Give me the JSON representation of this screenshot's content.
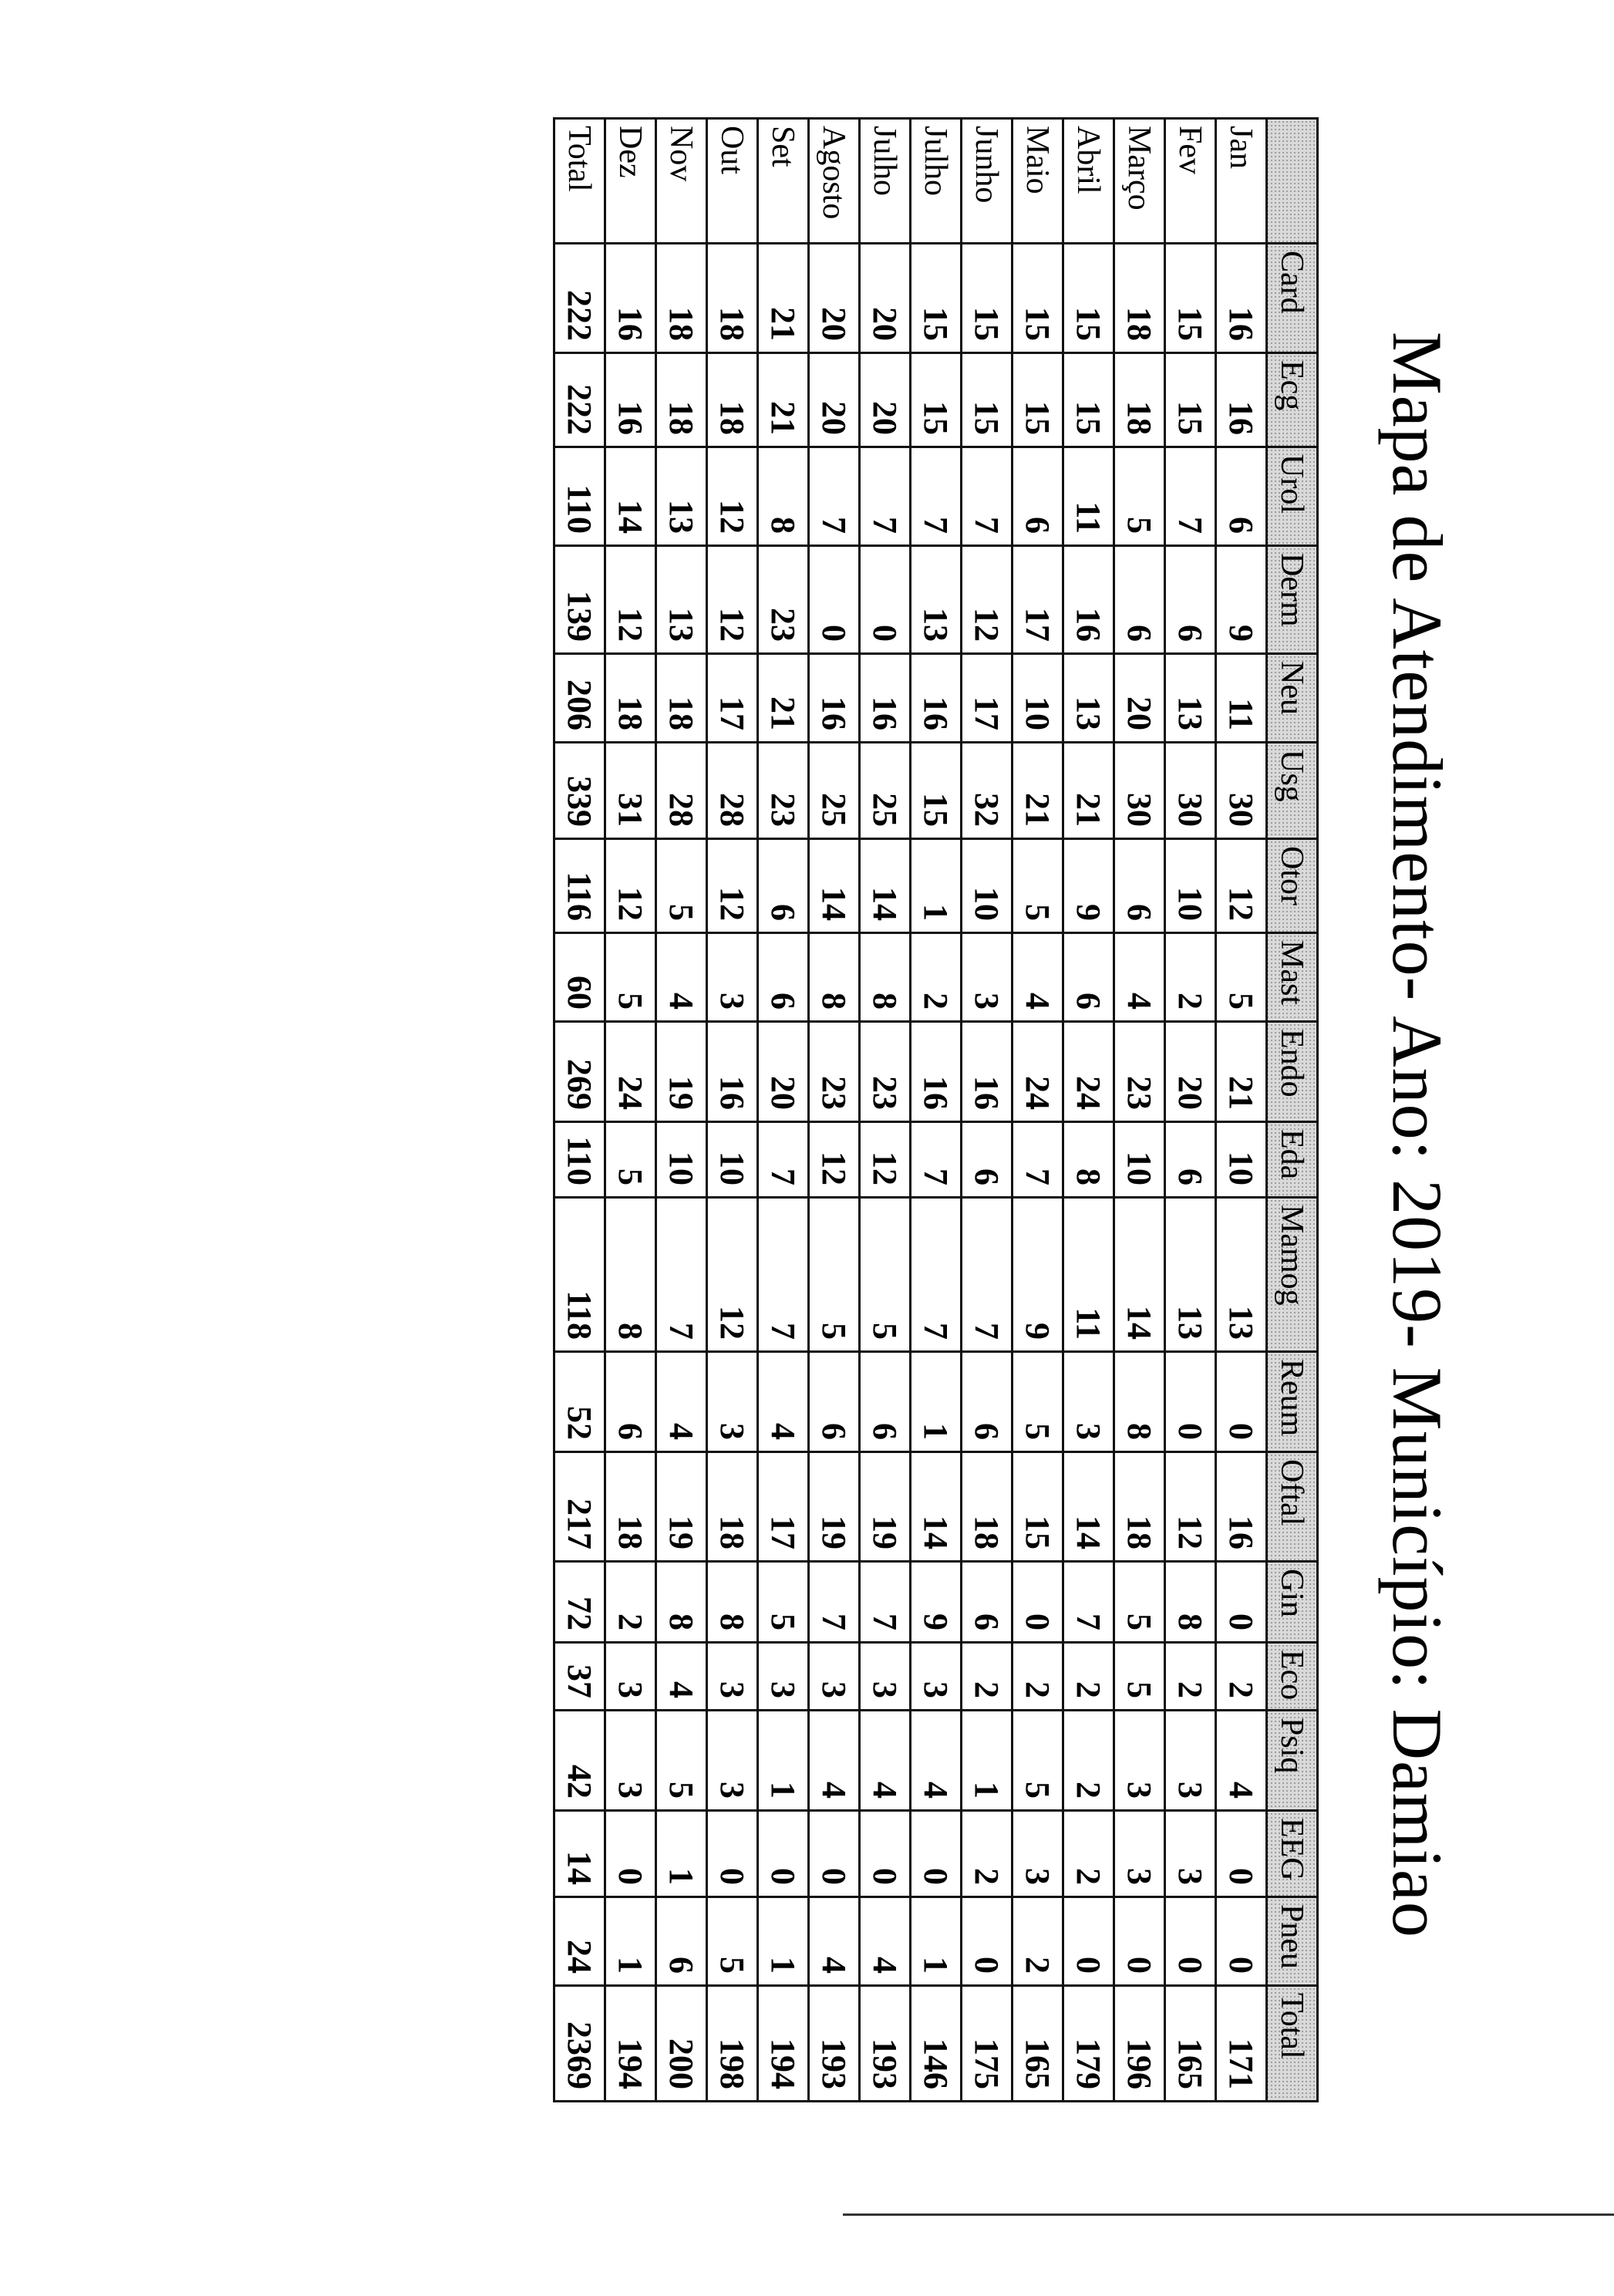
{
  "title": "Mapa de Atendimento- Ano: 2019- Município: Damiao",
  "table": {
    "columns": [
      "",
      "Card",
      "Ecg",
      "Urol",
      "Derm",
      "Neu",
      "Usg",
      "Otor",
      "Mast",
      "Endo",
      "Eda",
      "Mamog",
      "Reum",
      "Oftal",
      "Gin",
      "Eco",
      "Psiq",
      "EEG",
      "Pneu",
      "Total"
    ],
    "rows": [
      {
        "label": "Jan",
        "values": [
          "16",
          "16",
          "6",
          "9",
          "11",
          "30",
          "12",
          "5",
          "21",
          "10",
          "13",
          "0",
          "16",
          "0",
          "2",
          "4",
          "0",
          "0",
          "171"
        ]
      },
      {
        "label": "Fev",
        "values": [
          "15",
          "15",
          "7",
          "6",
          "13",
          "30",
          "10",
          "2",
          "20",
          "6",
          "13",
          "0",
          "12",
          "8",
          "2",
          "3",
          "3",
          "0",
          "165"
        ]
      },
      {
        "label": "Março",
        "values": [
          "18",
          "18",
          "5",
          "6",
          "20",
          "30",
          "6",
          "4",
          "23",
          "10",
          "14",
          "8",
          "18",
          "5",
          "5",
          "3",
          "3",
          "0",
          "196"
        ]
      },
      {
        "label": "Abril",
        "values": [
          "15",
          "15",
          "11",
          "16",
          "13",
          "21",
          "9",
          "6",
          "24",
          "8",
          "11",
          "3",
          "14",
          "7",
          "2",
          "2",
          "2",
          "0",
          "179"
        ]
      },
      {
        "label": "Maio",
        "values": [
          "15",
          "15",
          "6",
          "17",
          "10",
          "21",
          "5",
          "4",
          "24",
          "7",
          "9",
          "5",
          "15",
          "0",
          "2",
          "5",
          "3",
          "2",
          "165"
        ]
      },
      {
        "label": "Junho",
        "values": [
          "15",
          "15",
          "7",
          "12",
          "17",
          "32",
          "10",
          "3",
          "16",
          "6",
          "7",
          "6",
          "18",
          "6",
          "2",
          "1",
          "2",
          "0",
          "175"
        ]
      },
      {
        "label": "Julho",
        "values": [
          "15",
          "15",
          "7",
          "13",
          "16",
          "15",
          "1",
          "2",
          "16",
          "7",
          "7",
          "1",
          "14",
          "9",
          "3",
          "4",
          "0",
          "1",
          "146"
        ]
      },
      {
        "label": "Julho",
        "values": [
          "20",
          "20",
          "7",
          "0",
          "16",
          "25",
          "14",
          "8",
          "23",
          "12",
          "5",
          "6",
          "19",
          "7",
          "3",
          "4",
          "0",
          "4",
          "193"
        ]
      },
      {
        "label": "Agosto",
        "values": [
          "20",
          "20",
          "7",
          "0",
          "16",
          "25",
          "14",
          "8",
          "23",
          "12",
          "5",
          "6",
          "19",
          "7",
          "3",
          "4",
          "0",
          "4",
          "193"
        ]
      },
      {
        "label": "Set",
        "values": [
          "21",
          "21",
          "8",
          "23",
          "21",
          "23",
          "6",
          "6",
          "20",
          "7",
          "7",
          "4",
          "17",
          "5",
          "3",
          "1",
          "0",
          "1",
          "194"
        ]
      },
      {
        "label": "Out",
        "values": [
          "18",
          "18",
          "12",
          "12",
          "17",
          "28",
          "12",
          "3",
          "16",
          "10",
          "12",
          "3",
          "18",
          "8",
          "3",
          "3",
          "0",
          "5",
          "198"
        ]
      },
      {
        "label": "Nov",
        "values": [
          "18",
          "18",
          "13",
          "13",
          "18",
          "28",
          "5",
          "4",
          "19",
          "10",
          "7",
          "4",
          "19",
          "8",
          "4",
          "5",
          "1",
          "6",
          "200"
        ]
      },
      {
        "label": "Dez",
        "values": [
          "16",
          "16",
          "14",
          "12",
          "18",
          "31",
          "12",
          "5",
          "24",
          "5",
          "8",
          "6",
          "18",
          "2",
          "3",
          "3",
          "0",
          "1",
          "194"
        ]
      },
      {
        "label": "Total",
        "values": [
          "222",
          "222",
          "110",
          "139",
          "206",
          "339",
          "116",
          "60",
          "269",
          "110",
          "118",
          "52",
          "217",
          "72",
          "37",
          "42",
          "14",
          "24",
          "2369"
        ]
      }
    ]
  }
}
